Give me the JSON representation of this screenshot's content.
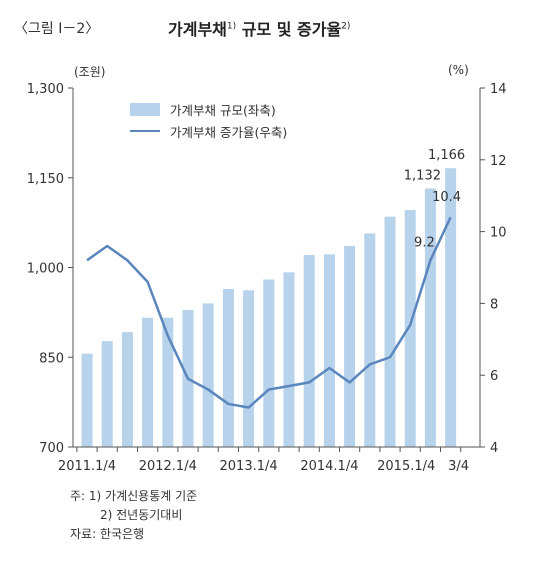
{
  "figure": {
    "label": "〈그림 Ⅰ－2〉",
    "title": "가계부채",
    "title_note": "1)",
    "title_tail": " 규모 및 증가율",
    "title_tail_note": "2)"
  },
  "units": {
    "left": "(조원)",
    "right": "(%)"
  },
  "notes": {
    "note1": "주: 1) 가계신용통계 기준",
    "note2": "2) 전년동기대비",
    "source": "자료: 한국은행"
  },
  "colors": {
    "bar": "#b7d3ec",
    "line": "#5a86bd",
    "axis": "#555555",
    "text": "#333333"
  },
  "chart_data": {
    "type": "bar",
    "x_tick_labels": [
      "2011.1/4",
      "2012.1/4",
      "2013.1/4",
      "2014.1/4",
      "2015.1/4",
      "3/4"
    ],
    "legend": {
      "placement": "top-left"
    },
    "grid": false,
    "left_axis": {
      "range": [
        700,
        1300
      ],
      "ticks": [
        "700",
        "850",
        "1,000",
        "1,150",
        "1,300"
      ]
    },
    "right_axis": {
      "range": [
        4,
        14
      ],
      "ticks": [
        "4",
        "6",
        "8",
        "10",
        "12",
        "14"
      ]
    },
    "categories": [
      "2011.1/4",
      "2011.2/4",
      "2011.3/4",
      "2011.4/4",
      "2012.1/4",
      "2012.2/4",
      "2012.3/4",
      "2012.4/4",
      "2013.1/4",
      "2013.2/4",
      "2013.3/4",
      "2013.4/4",
      "2014.1/4",
      "2014.2/4",
      "2014.3/4",
      "2014.4/4",
      "2015.1/4",
      "2015.2/4",
      "2015.3/4"
    ],
    "series": [
      {
        "name": "가계부채 규모(좌축)",
        "type": "bar",
        "axis": "left",
        "values": [
          856,
          877,
          892,
          916,
          916,
          929,
          940,
          964,
          962,
          980,
          992,
          1021,
          1022,
          1036,
          1057,
          1085,
          1096,
          1132,
          1166
        ]
      },
      {
        "name": "가계부채 증가율(우축)",
        "type": "line",
        "axis": "right",
        "values": [
          9.2,
          9.6,
          9.2,
          8.6,
          7.1,
          5.9,
          5.6,
          5.2,
          5.1,
          5.6,
          5.7,
          5.8,
          6.2,
          5.8,
          6.3,
          6.5,
          7.4,
          9.2,
          10.4
        ]
      }
    ],
    "data_labels": [
      "1,166",
      "1,132",
      "10.4",
      "9.2"
    ]
  }
}
